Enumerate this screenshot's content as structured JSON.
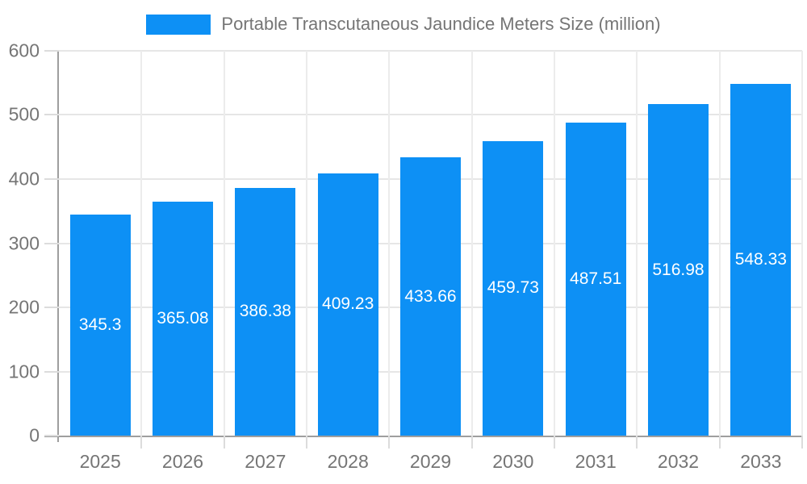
{
  "legend": {
    "swatch_color": "#0d90f5"
  },
  "colors": {
    "bar": "#0d90f5",
    "bar_label": "#ffffff",
    "axis_text": "#757575",
    "axis_line": "#9e9e9e",
    "gridline_h": "#e6e6e6",
    "gridline_v": "#ececec",
    "tick": "#dcdcdc"
  },
  "chart_data": {
    "type": "bar",
    "title": "Portable Transcutaneous Jaundice Meters Size (million)",
    "categories": [
      "2025",
      "2026",
      "2027",
      "2028",
      "2029",
      "2030",
      "2031",
      "2032",
      "2033"
    ],
    "values": [
      345.3,
      365.08,
      386.38,
      409.23,
      433.66,
      459.73,
      487.51,
      516.98,
      548.33
    ],
    "value_labels": [
      "345.3",
      "365.08",
      "386.38",
      "409.23",
      "433.66",
      "459.73",
      "487.51",
      "516.98",
      "548.33"
    ],
    "xlabel": "",
    "ylabel": "",
    "ylim": [
      0,
      600
    ],
    "yticks": [
      0,
      100,
      200,
      300,
      400,
      500,
      600
    ],
    "grid": true,
    "legend_position": "top-center",
    "bar_width_fraction": 0.73
  }
}
